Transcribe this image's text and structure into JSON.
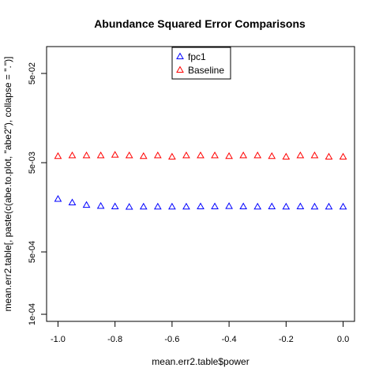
{
  "chart_data": {
    "type": "scatter",
    "title": "Abundance Squared Error Comparisons",
    "xlabel": "mean.err2.table$power",
    "ylabel": "mean.err2.table[, paste(c(abe.to.plot, \"abe2\"), collapse = \".\")]",
    "xlim": [
      -1.04,
      0.04
    ],
    "ylim": [
      8.33e-05,
      0.1
    ],
    "y_scale": "log",
    "grid": false,
    "x_ticks": [
      {
        "value": -1.0,
        "label": "-1.0"
      },
      {
        "value": -0.8,
        "label": "-0.8"
      },
      {
        "value": -0.6,
        "label": "-0.6"
      },
      {
        "value": -0.4,
        "label": "-0.4"
      },
      {
        "value": -0.2,
        "label": "-0.2"
      },
      {
        "value": 0.0,
        "label": "0.0"
      }
    ],
    "y_ticks": [
      {
        "value": 0.0001,
        "label": "1e-04"
      },
      {
        "value": 0.0005,
        "label": "5e-04"
      },
      {
        "value": 0.005,
        "label": "5e-03"
      },
      {
        "value": 0.05,
        "label": "5e-02"
      }
    ],
    "legend_position": "top-center",
    "x": [
      -1.0,
      -0.95,
      -0.9,
      -0.85,
      -0.8,
      -0.75,
      -0.7,
      -0.65,
      -0.6,
      -0.55,
      -0.5,
      -0.45,
      -0.4,
      -0.35,
      -0.3,
      -0.25,
      -0.2,
      -0.15,
      -0.1,
      -0.05,
      0.0
    ],
    "series": [
      {
        "name": "fpc1",
        "color": "#0000ff",
        "marker": "triangle-open",
        "values": [
          0.00195,
          0.00178,
          0.00167,
          0.00163,
          0.00161,
          0.00159,
          0.0016,
          0.0016,
          0.0016,
          0.0016,
          0.00161,
          0.00161,
          0.00162,
          0.00161,
          0.0016,
          0.00161,
          0.0016,
          0.00161,
          0.0016,
          0.0016,
          0.0016
        ]
      },
      {
        "name": "Baseline",
        "color": "#ff0000",
        "marker": "triangle-open",
        "values": [
          0.0059,
          0.006,
          0.006,
          0.006,
          0.0061,
          0.006,
          0.0059,
          0.006,
          0.0058,
          0.006,
          0.006,
          0.006,
          0.0059,
          0.006,
          0.006,
          0.0059,
          0.0058,
          0.006,
          0.006,
          0.0058,
          0.0058
        ]
      }
    ]
  }
}
